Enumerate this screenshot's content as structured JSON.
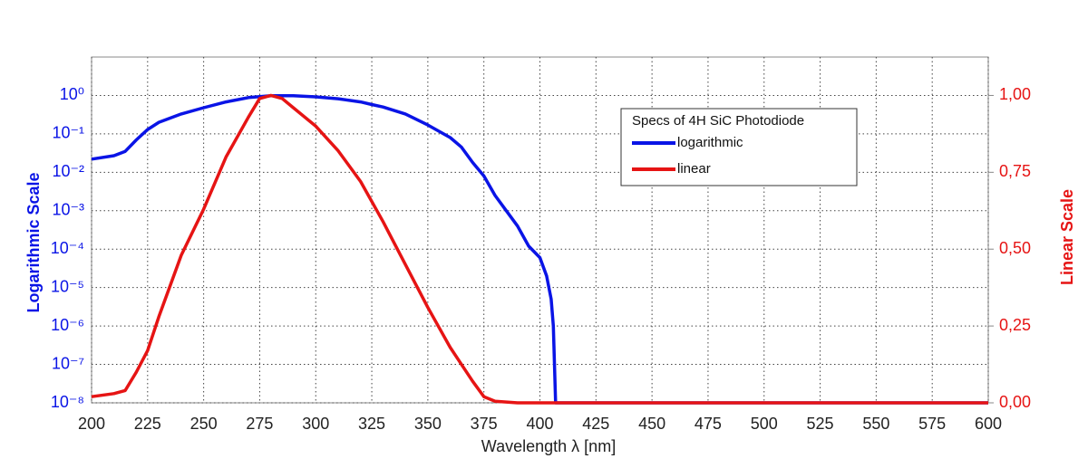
{
  "chart_data": {
    "type": "line",
    "x_label": "Wavelength λ [nm]",
    "y_label": "Logarithmic Scale",
    "y2_label": "Linear Scale",
    "legend_title": "Specs of 4H SiC Photodiode",
    "legend": "upper-right",
    "grid": true,
    "yscale": "log",
    "xlim": [
      200,
      600
    ],
    "xticks": [
      200,
      225,
      250,
      275,
      300,
      325,
      350,
      375,
      400,
      425,
      450,
      475,
      500,
      525,
      550,
      575,
      600
    ],
    "ylim": [
      1e-08,
      10
    ],
    "yticks": [
      {
        "value": 1e-08,
        "label": "10⁻⁸"
      },
      {
        "value": 1e-07,
        "label": "10⁻⁷"
      },
      {
        "value": 1e-06,
        "label": "10⁻⁶"
      },
      {
        "value": 1e-05,
        "label": "10⁻⁵"
      },
      {
        "value": 0.0001,
        "label": "10⁻⁴"
      },
      {
        "value": 0.001,
        "label": "10⁻³"
      },
      {
        "value": 0.01,
        "label": "10⁻²"
      },
      {
        "value": 0.1,
        "label": "10⁻¹"
      },
      {
        "value": 1,
        "label": "10⁰"
      }
    ],
    "y2lim": [
      0,
      1.125
    ],
    "y2ticks": [
      {
        "value": 0,
        "label": "0,00"
      },
      {
        "value": 0.25,
        "label": "0,25"
      },
      {
        "value": 0.5,
        "label": "0,50"
      },
      {
        "value": 0.75,
        "label": "0,75"
      },
      {
        "value": 1,
        "label": "1,00"
      }
    ],
    "series": [
      {
        "name": "logarithmic",
        "color": "#0a14e6",
        "axis": "y",
        "x": [
          200,
          210,
          215,
          220,
          225,
          230,
          240,
          250,
          260,
          270,
          280,
          290,
          300,
          310,
          320,
          325,
          330,
          340,
          350,
          360,
          365,
          370,
          375,
          380,
          385,
          390,
          395,
          400,
          403,
          405,
          406,
          407,
          600
        ],
        "values": [
          0.022,
          0.027,
          0.035,
          0.07,
          0.13,
          0.2,
          0.33,
          0.48,
          0.68,
          0.88,
          0.98,
          0.98,
          0.92,
          0.82,
          0.68,
          0.58,
          0.5,
          0.33,
          0.17,
          0.08,
          0.045,
          0.018,
          0.008,
          0.0025,
          0.001,
          0.0004,
          0.00012,
          6e-05,
          2e-05,
          5e-06,
          1e-06,
          1e-08,
          1e-08
        ]
      },
      {
        "name": "linear",
        "color": "#e61414",
        "axis": "y2",
        "x": [
          200,
          210,
          215,
          220,
          225,
          230,
          240,
          250,
          260,
          270,
          275,
          280,
          285,
          290,
          300,
          310,
          320,
          330,
          340,
          350,
          360,
          370,
          375,
          380,
          390,
          600
        ],
        "values": [
          0.02,
          0.03,
          0.04,
          0.1,
          0.17,
          0.28,
          0.48,
          0.63,
          0.8,
          0.93,
          0.99,
          1.0,
          0.99,
          0.96,
          0.9,
          0.82,
          0.72,
          0.59,
          0.45,
          0.31,
          0.18,
          0.07,
          0.02,
          0.005,
          0,
          0
        ]
      }
    ]
  }
}
